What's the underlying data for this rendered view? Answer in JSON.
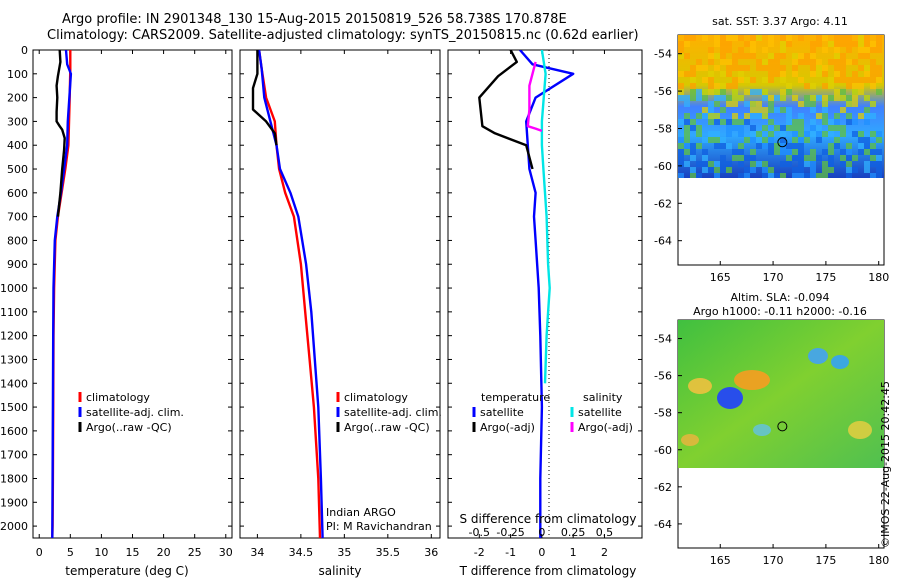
{
  "header": {
    "line1": "Argo profile: IN 2901348_130 15-Aug-2015 20150819_526 58.738S 170.878E",
    "line2": "Climatology: CARS2009. Satellite-adjusted climatology: synTS_20150815.nc (0.62d earlier)"
  },
  "footer_credit": "©IMOS 22-Aug-2015 20:42:45",
  "colors": {
    "climatology": "#ff0000",
    "satellite": "#0000ff",
    "argo": "#000000",
    "salinity_satellite": "#00e6e6",
    "salinity_argo": "#ff00ff"
  },
  "chart_data": [
    {
      "type": "line",
      "xlabel": "temperature (deg C)",
      "ylabel": "",
      "xlim": [
        -1,
        31
      ],
      "ylim": [
        2050,
        0
      ],
      "xticks": [
        0,
        5,
        10,
        15,
        20,
        25,
        30
      ],
      "yticks": [
        0,
        100,
        200,
        300,
        400,
        500,
        600,
        700,
        800,
        900,
        1000,
        1100,
        1200,
        1300,
        1400,
        1500,
        1600,
        1700,
        1800,
        1900,
        2000
      ],
      "legend": {
        "placement": "lower-center",
        "entries": [
          "climatology",
          "satellite-adj. clim.",
          "Argo(..raw -QC)"
        ]
      },
      "series": [
        {
          "name": "climatology",
          "color": "#ff0000",
          "x": [
            5.0,
            5.0,
            4.9,
            4.7,
            4.2,
            3.6,
            3.0,
            2.6,
            2.4,
            2.3,
            2.25,
            2.2,
            2.15,
            2.1
          ],
          "y": [
            0,
            80,
            200,
            400,
            500,
            600,
            700,
            800,
            1000,
            1200,
            1500,
            1800,
            2000,
            2050
          ]
        },
        {
          "name": "satellite-adj. clim.",
          "color": "#0000ff",
          "x": [
            4.3,
            4.5,
            5.1,
            4.6,
            4.5,
            4.0,
            3.5,
            2.9,
            2.5,
            2.3,
            2.25,
            2.2,
            2.15,
            2.1
          ],
          "y": [
            0,
            60,
            100,
            300,
            400,
            500,
            600,
            700,
            800,
            1000,
            1200,
            1500,
            1800,
            2050
          ]
        },
        {
          "name": "Argo(..raw -QC)",
          "color": "#000000",
          "x": [
            3.3,
            3.4,
            3.0,
            2.8,
            2.9,
            2.8,
            2.8,
            3.3,
            3.7,
            4.1,
            4.0,
            3.7,
            3.4,
            3.0
          ],
          "y": [
            0,
            50,
            110,
            150,
            200,
            260,
            300,
            320,
            335,
            370,
            420,
            500,
            600,
            700
          ]
        }
      ]
    },
    {
      "type": "line",
      "xlabel": "salinity",
      "ylabel": "",
      "xlim": [
        33.8,
        36.1
      ],
      "ylim": [
        2050,
        0
      ],
      "xticks": [
        34,
        34.5,
        35,
        35.5,
        36
      ],
      "legend": {
        "placement": "lower-center",
        "entries": [
          "climatology",
          "satellite-adj. clim.",
          "Argo(..raw -QC)"
        ]
      },
      "annotation": [
        "Indian ARGO",
        "PI: M Ravichandran"
      ],
      "series": [
        {
          "name": "climatology",
          "color": "#ff0000",
          "x": [
            34.02,
            34.05,
            34.1,
            34.2,
            34.22,
            34.25,
            34.32,
            34.42,
            34.5,
            34.55,
            34.6,
            34.65,
            34.7,
            34.72
          ],
          "y": [
            0,
            80,
            200,
            300,
            400,
            500,
            600,
            700,
            900,
            1100,
            1300,
            1500,
            1800,
            2050
          ]
        },
        {
          "name": "satellite-adj. clim.",
          "color": "#0000ff",
          "x": [
            34.02,
            34.05,
            34.08,
            34.15,
            34.22,
            34.26,
            34.38,
            34.47,
            34.56,
            34.62,
            34.66,
            34.7,
            34.73,
            34.75
          ],
          "y": [
            0,
            80,
            200,
            300,
            400,
            500,
            600,
            700,
            900,
            1100,
            1300,
            1500,
            1800,
            2050
          ]
        },
        {
          "name": "Argo(..raw -QC)",
          "color": "#000000",
          "x": [
            34.0,
            34.0,
            33.95,
            33.95,
            34.1,
            34.2,
            34.22
          ],
          "y": [
            0,
            100,
            160,
            250,
            300,
            350,
            400
          ]
        }
      ]
    },
    {
      "type": "line",
      "xlabel": "T difference from climatology",
      "x2label": "S difference from climatology",
      "xlim": [
        -3,
        3.2
      ],
      "ylim": [
        2050,
        0
      ],
      "xticks": [
        -2,
        -1,
        0,
        1,
        2
      ],
      "x2ticks": [
        "-0.5",
        "-0.25",
        "0",
        "0.25",
        "0.5"
      ],
      "legend": {
        "placement": "lower-center",
        "entries": [
          "temperature",
          "satellite",
          "Argo(-adj)",
          "salinity",
          "satellite",
          "Argo(-adj)"
        ]
      },
      "series": [
        {
          "name": "temperature satellite",
          "color": "#0000ff",
          "x": [
            -0.7,
            -0.3,
            1.0,
            -0.2,
            -0.5,
            -0.4,
            -0.2,
            -0.25,
            -0.2,
            -0.1,
            -0.05,
            0.0,
            -0.05,
            -0.05
          ],
          "y": [
            0,
            60,
            100,
            200,
            300,
            500,
            600,
            700,
            800,
            1000,
            1200,
            1500,
            1800,
            2050
          ]
        },
        {
          "name": "temperature Argo(-adj)",
          "color": "#000000",
          "x": [
            -1.0,
            -0.8,
            -1.4,
            -2.0,
            -1.9,
            -1.5,
            -0.5,
            -0.3
          ],
          "y": [
            0,
            50,
            110,
            200,
            320,
            350,
            400,
            500
          ]
        },
        {
          "name": "salinity satellite",
          "color": "#00e6e6",
          "x": [
            0.0,
            0.12,
            0.0,
            0.0,
            0.05,
            0.1,
            0.15,
            0.2,
            0.25,
            0.2,
            0.15,
            0.1
          ],
          "y": [
            0,
            100,
            300,
            400,
            500,
            600,
            700,
            900,
            1000,
            1100,
            1200,
            1400
          ]
        },
        {
          "name": "salinity Argo(-adj)",
          "color": "#ff00ff",
          "x": [
            -0.2,
            -0.4,
            -0.4,
            -0.45,
            -0.2,
            0.0
          ],
          "y": [
            50,
            150,
            250,
            320,
            330,
            340
          ]
        }
      ]
    },
    {
      "type": "heatmap",
      "title": "sat. SST: 3.37 Argo: 4.11",
      "xlim": [
        161,
        180.5
      ],
      "ylim": [
        -65.3,
        -53
      ],
      "xticks": [
        165,
        170,
        175,
        180
      ],
      "yticks": [
        -54,
        -56,
        -58,
        -60,
        -62,
        -64
      ],
      "marker": {
        "lon": 170.878,
        "lat": -58.738
      },
      "data_bottom_lat": -60
    },
    {
      "type": "heatmap",
      "title_lines": [
        "Altim. SLA: -0.094",
        "Argo h1000: -0.11 h2000: -0.16"
      ],
      "xlim": [
        161,
        180.5
      ],
      "ylim": [
        -65.3,
        -53
      ],
      "xticks": [
        165,
        170,
        175,
        180
      ],
      "yticks": [
        -54,
        -56,
        -58,
        -60,
        -62,
        -64
      ],
      "marker": {
        "lon": 170.878,
        "lat": -58.738
      },
      "data_bottom_lat": -60
    }
  ]
}
